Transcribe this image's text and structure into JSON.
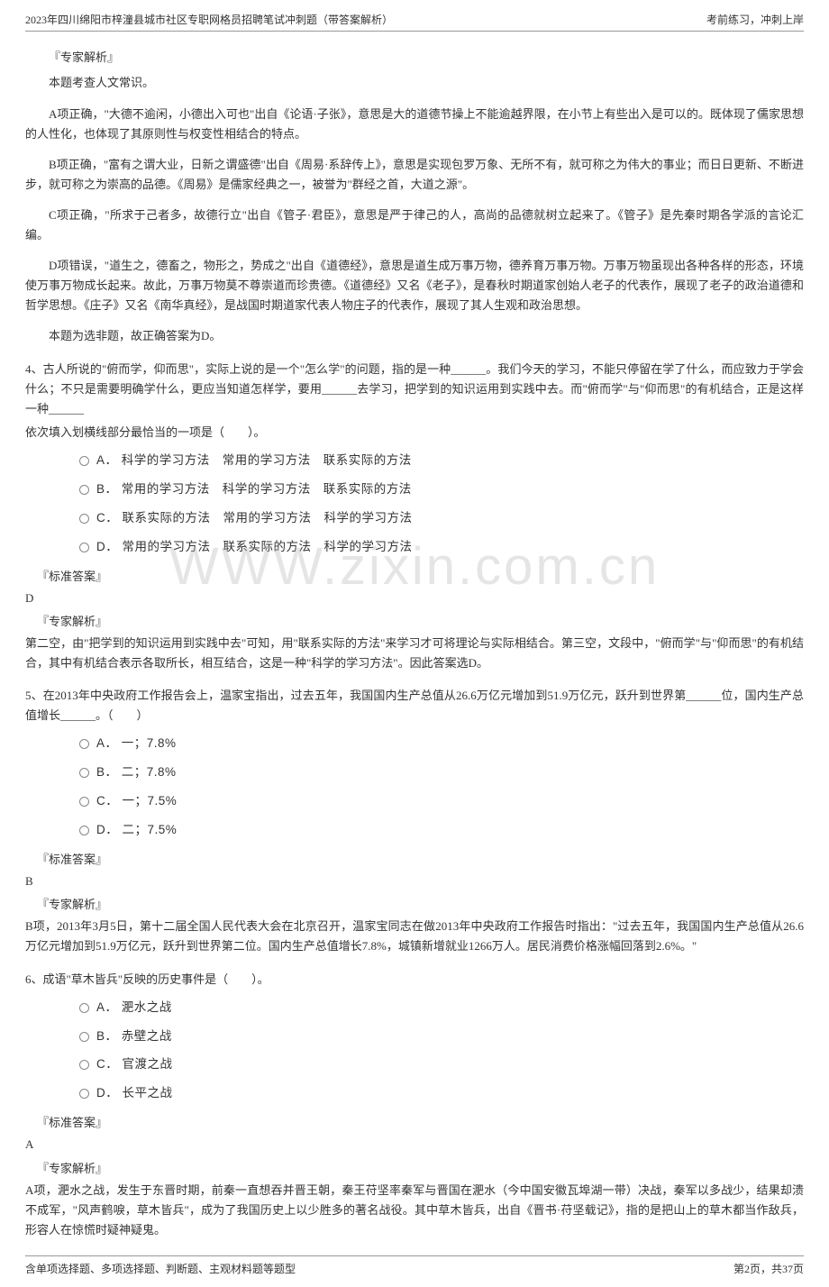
{
  "header": {
    "title": "2023年四川绵阳市梓潼县城市社区专职网格员招聘笔试冲刺题（带答案解析）",
    "right": "考前练习，冲刺上岸"
  },
  "watermark": "WWW.zixin.com.cn",
  "q3_analysis": {
    "label": "『专家解析』",
    "intro": "本题考查人文常识。",
    "a": "A项正确，\"大德不逾闲，小德出入可也\"出自《论语·子张》，意思是大的道德节操上不能逾越界限，在小节上有些出入是可以的。既体现了儒家思想的人性化，也体现了其原则性与权变性相结合的特点。",
    "b": "B项正确，\"富有之谓大业，日新之谓盛德\"出自《周易·系辞传上》，意思是实现包罗万象、无所不有，就可称之为伟大的事业；而日日更新、不断进步，就可称之为崇高的品德。《周易》是儒家经典之一，被誉为\"群经之首，大道之源\"。",
    "c": "C项正确，\"所求于己者多，故德行立\"出自《管子·君臣》，意思是严于律己的人，高尚的品德就树立起来了。《管子》是先秦时期各学派的言论汇编。",
    "d": "D项错误，\"道生之，德畜之，物形之，势成之\"出自《道德经》，意思是道生成万事万物，德养育万事万物。万事万物虽现出各种各样的形态，环境使万事万物成长起来。故此，万事万物莫不尊崇道而珍贵德。《道德经》又名《老子》，是春秋时期道家创始人老子的代表作，展现了老子的政治道德和哲学思想。《庄子》又名《南华真经》，是战国时期道家代表人物庄子的代表作，展现了其人生观和政治思想。",
    "conclusion": "本题为选非题，故正确答案为D。"
  },
  "q4": {
    "text": "4、古人所说的\"俯而学，仰而思\"，实际上说的是一个\"怎么学\"的问题，指的是一种______。我们今天的学习，不能只停留在学了什么，而应致力于学会什么；不只是需要明确学什么，更应当知道怎样学，要用______去学习，把学到的知识运用到实践中去。而\"俯而学\"与\"仰而思\"的有机结合，正是这样一种______",
    "sub": "依次填入划横线部分最恰当的一项是（　　）。",
    "options": [
      "A．  科学的学习方法　常用的学习方法　联系实际的方法",
      "B．  常用的学习方法　科学的学习方法　联系实际的方法",
      "C．  联系实际的方法　常用的学习方法　科学的学习方法",
      "D．  常用的学习方法　联系实际的方法　科学的学习方法"
    ],
    "answer_label": "『标准答案』",
    "answer": "D",
    "analysis_label": "『专家解析』",
    "analysis": "第二空，由\"把学到的知识运用到实践中去\"可知，用\"联系实际的方法\"来学习才可将理论与实际相结合。第三空，文段中，\"俯而学\"与\"仰而思\"的有机结合，其中有机结合表示各取所长，相互结合，这是一种\"科学的学习方法\"。因此答案选D。"
  },
  "q5": {
    "text": "5、在2013年中央政府工作报告会上，温家宝指出，过去五年，我国国内生产总值从26.6万亿元增加到51.9万亿元，跃升到世界第______位，国内生产总值增长______。（　　）",
    "options": [
      "A．  一；7.8%",
      "B．  二；7.8%",
      "C．  一；7.5%",
      "D．  二；7.5%"
    ],
    "answer_label": "『标准答案』",
    "answer": "B",
    "analysis_label": "『专家解析』",
    "analysis": "B项，2013年3月5日，第十二届全国人民代表大会在北京召开，温家宝同志在做2013年中央政府工作报告时指出：\"过去五年，我国国内生产总值从26.6万亿元增加到51.9万亿元，跃升到世界第二位。国内生产总值增长7.8%，城镇新增就业1266万人。居民消费价格涨幅回落到2.6%。\""
  },
  "q6": {
    "text": "6、成语\"草木皆兵\"反映的历史事件是（　　）。",
    "options": [
      "A．  淝水之战",
      "B．  赤壁之战",
      "C．  官渡之战",
      "D．  长平之战"
    ],
    "answer_label": "『标准答案』",
    "answer": "A",
    "analysis_label": "『专家解析』",
    "analysis": "A项，淝水之战，发生于东晋时期，前秦一直想吞并晋王朝，秦王苻坚率秦军与晋国在淝水（今中国安徽瓦埠湖一带）决战，秦军以多战少，结果却溃不成军，\"风声鹤唳，草木皆兵\"，成为了我国历史上以少胜多的著名战役。其中草木皆兵，出自《晋书·苻坚载记》，指的是把山上的草木都当作敌兵，形容人在惊慌时疑神疑鬼。"
  },
  "footer": {
    "left": "含单项选择题、多项选择题、判断题、主观材料题等题型",
    "right": "第2页，共37页"
  },
  "styles": {
    "text_color": "#333333",
    "border_color": "#999999",
    "watermark_color": "rgba(180,180,180,0.35)",
    "body_font_size": 13,
    "option_font_size": 13.5,
    "header_font_size": 12,
    "watermark_font_size": 58
  }
}
